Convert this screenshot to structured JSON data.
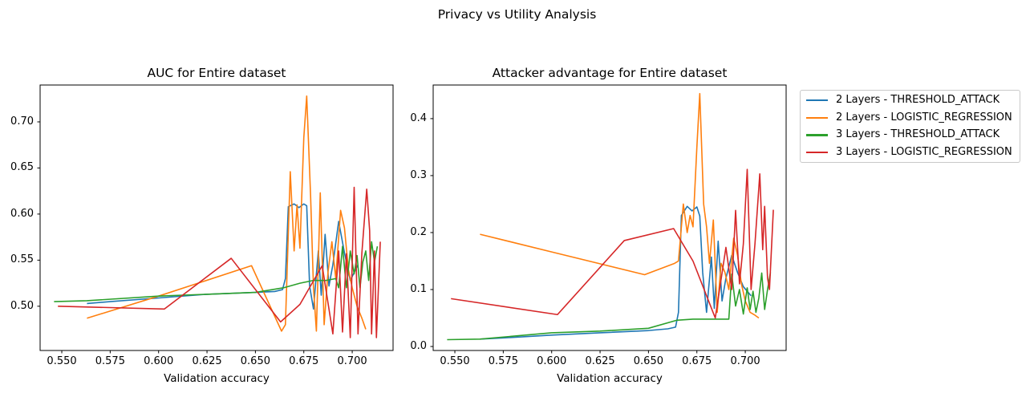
{
  "figure": {
    "background": "#ffffff",
    "suptitle": "Privacy vs Utility Analysis"
  },
  "chart_data": {
    "type": "line",
    "suptitle": "Privacy vs Utility Analysis",
    "grid": false,
    "legend_position": "outside upper right",
    "axis_color": "#000000",
    "legend_border_color": "#c9c9c9",
    "plots": [
      {
        "title": "AUC for Entire dataset",
        "xlabel": "Validation accuracy",
        "value_key": "auc",
        "xlim": [
          0.5388,
          0.7211
        ],
        "ylim": [
          0.452,
          0.74
        ],
        "xtick_values": [
          0.55,
          0.575,
          0.6,
          0.625,
          0.65,
          0.675,
          0.7
        ],
        "xtick_labels": [
          "0.550",
          "0.575",
          "0.600",
          "0.625",
          "0.650",
          "0.675",
          "0.700"
        ],
        "ytick_values": [
          0.5,
          0.55,
          0.6,
          0.65,
          0.7
        ],
        "ytick_labels": [
          "0.50",
          "0.55",
          "0.60",
          "0.65",
          "0.70"
        ]
      },
      {
        "title": "Attacker advantage for Entire dataset",
        "xlabel": "Validation accuracy",
        "value_key": "advantage",
        "xlim": [
          0.5388,
          0.7211
        ],
        "ylim": [
          -0.007,
          0.459
        ],
        "xtick_values": [
          0.55,
          0.575,
          0.6,
          0.625,
          0.65,
          0.675,
          0.7
        ],
        "xtick_labels": [
          "0.550",
          "0.575",
          "0.600",
          "0.625",
          "0.650",
          "0.675",
          "0.700"
        ],
        "ytick_values": [
          0.0,
          0.1,
          0.2,
          0.3,
          0.4
        ],
        "ytick_labels": [
          "0.0",
          "0.1",
          "0.2",
          "0.3",
          "0.4"
        ]
      }
    ],
    "series": [
      {
        "name": "2 Layers - THRESHOLD_ATTACK",
        "color": "#1f77b4",
        "x": [
          0.563,
          0.575,
          0.6,
          0.625,
          0.65,
          0.66,
          0.664,
          0.6655,
          0.667,
          0.67,
          0.6725,
          0.675,
          0.6765,
          0.678,
          0.68,
          0.6825,
          0.684,
          0.686,
          0.688,
          0.69,
          0.693,
          0.696,
          0.699,
          0.703
        ],
        "auc": [
          0.503,
          0.505,
          0.509,
          0.513,
          0.515,
          0.516,
          0.518,
          0.53,
          0.608,
          0.611,
          0.607,
          0.611,
          0.609,
          0.522,
          0.497,
          0.56,
          0.512,
          0.578,
          0.522,
          0.545,
          0.592,
          0.558,
          0.528,
          0.545
        ],
        "advantage": [
          0.013,
          0.015,
          0.02,
          0.024,
          0.028,
          0.031,
          0.034,
          0.06,
          0.23,
          0.246,
          0.238,
          0.245,
          0.229,
          0.13,
          0.06,
          0.157,
          0.067,
          0.185,
          0.08,
          0.12,
          0.16,
          0.13,
          0.105,
          0.089
        ]
      },
      {
        "name": "2 Layers - LOGISTIC_REGRESSION",
        "color": "#ff7f0e",
        "x": [
          0.563,
          0.6,
          0.648,
          0.6635,
          0.6655,
          0.668,
          0.67,
          0.6715,
          0.673,
          0.675,
          0.6765,
          0.6785,
          0.68,
          0.6815,
          0.6835,
          0.6855,
          0.6875,
          0.6895,
          0.6915,
          0.694,
          0.696,
          0.698,
          0.7,
          0.7025,
          0.705,
          0.707
        ],
        "auc": [
          0.487,
          0.511,
          0.544,
          0.473,
          0.48,
          0.646,
          0.56,
          0.61,
          0.563,
          0.683,
          0.728,
          0.62,
          0.52,
          0.473,
          0.623,
          0.48,
          0.537,
          0.57,
          0.53,
          0.604,
          0.585,
          0.54,
          0.52,
          0.5,
          0.487,
          0.475
        ],
        "advantage": [
          0.197,
          0.166,
          0.126,
          0.146,
          0.15,
          0.25,
          0.2,
          0.23,
          0.21,
          0.35,
          0.444,
          0.25,
          0.21,
          0.146,
          0.222,
          0.06,
          0.146,
          0.13,
          0.1,
          0.19,
          0.16,
          0.11,
          0.08,
          0.06,
          0.055,
          0.05
        ]
      },
      {
        "name": "3 Layers - THRESHOLD_ATTACK",
        "color": "#2ca02c",
        "x": [
          0.546,
          0.563,
          0.6,
          0.625,
          0.65,
          0.6645,
          0.673,
          0.68,
          0.6865,
          0.6915,
          0.693,
          0.695,
          0.697,
          0.699,
          0.701,
          0.7025,
          0.704,
          0.7055,
          0.707,
          0.7085,
          0.71,
          0.7115,
          0.713
        ],
        "auc": [
          0.505,
          0.506,
          0.511,
          0.513,
          0.515,
          0.52,
          0.525,
          0.528,
          0.528,
          0.53,
          0.52,
          0.565,
          0.52,
          0.56,
          0.535,
          0.555,
          0.52,
          0.548,
          0.56,
          0.528,
          0.57,
          0.548,
          0.565
        ],
        "advantage": [
          0.012,
          0.013,
          0.024,
          0.027,
          0.032,
          0.046,
          0.048,
          0.048,
          0.048,
          0.048,
          0.127,
          0.071,
          0.1,
          0.057,
          0.103,
          0.065,
          0.097,
          0.06,
          0.085,
          0.129,
          0.065,
          0.1,
          0.13
        ]
      },
      {
        "name": "3 Layers - LOGISTIC_REGRESSION",
        "color": "#d62728",
        "x": [
          0.548,
          0.603,
          0.6375,
          0.663,
          0.673,
          0.6845,
          0.69,
          0.693,
          0.695,
          0.697,
          0.699,
          0.701,
          0.703,
          0.705,
          0.7075,
          0.709,
          0.71,
          0.7115,
          0.7125,
          0.7145
        ],
        "auc": [
          0.5,
          0.497,
          0.552,
          0.483,
          0.502,
          0.544,
          0.47,
          0.56,
          0.472,
          0.557,
          0.466,
          0.629,
          0.47,
          0.558,
          0.627,
          0.582,
          0.47,
          0.56,
          0.466,
          0.57
        ],
        "advantage": [
          0.084,
          0.056,
          0.186,
          0.207,
          0.15,
          0.05,
          0.174,
          0.1,
          0.239,
          0.11,
          0.18,
          0.311,
          0.1,
          0.18,
          0.303,
          0.17,
          0.246,
          0.12,
          0.1,
          0.24
        ]
      }
    ]
  }
}
